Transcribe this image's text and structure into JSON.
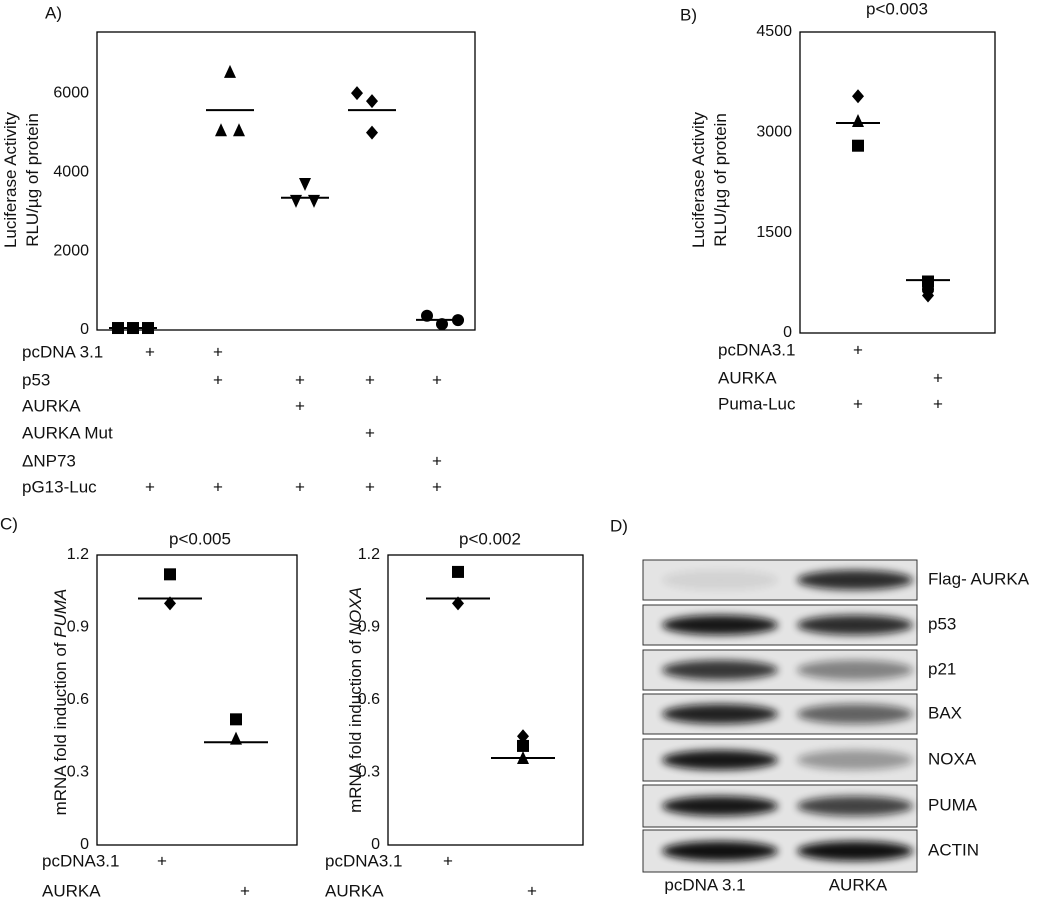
{
  "chart_data": [
    {
      "type": "strip",
      "panel": "A)",
      "ylabel": [
        "Luciferase Activity",
        "RLU/µg of protein"
      ],
      "ylim": [
        0,
        7550
      ],
      "yticks": [
        0,
        2000,
        4000,
        6000
      ],
      "groups": [
        {
          "marker": "square",
          "values": [
            50,
            50,
            50
          ],
          "mean": 50
        },
        {
          "marker": "triangle-up",
          "values": [
            6540,
            5060,
            5060
          ],
          "mean": 5570
        },
        {
          "marker": "triangle-down",
          "values": [
            3700,
            3270,
            3270
          ],
          "mean": 3350
        },
        {
          "marker": "diamond",
          "values": [
            6000,
            5800,
            5000
          ],
          "mean": 5570
        },
        {
          "marker": "circle",
          "values": [
            360,
            150,
            250
          ],
          "mean": 255
        }
      ],
      "conditions": [
        {
          "label": "pcDNA 3.1",
          "marks": [
            "+",
            "+",
            null,
            null,
            null
          ]
        },
        {
          "label": "p53",
          "marks": [
            null,
            "+",
            "+",
            "+",
            "+"
          ]
        },
        {
          "label": "AURKA",
          "marks": [
            null,
            null,
            "+",
            null,
            null
          ]
        },
        {
          "label": "AURKA  Mut",
          "marks": [
            null,
            null,
            null,
            "+",
            null
          ]
        },
        {
          "label": "ΔNP73",
          "marks": [
            null,
            null,
            null,
            null,
            "+"
          ]
        },
        {
          "label": "pG13-Luc",
          "marks": [
            "+",
            "+",
            "+",
            "+",
            "+"
          ]
        }
      ]
    },
    {
      "type": "strip",
      "panel": "B)",
      "title": "p<0.003",
      "ylabel": [
        "Luciferase Activity",
        "RLU/µg of protein"
      ],
      "ylim": [
        0,
        4500
      ],
      "yticks": [
        0,
        1500,
        3000,
        4500
      ],
      "groups": [
        {
          "marker": "mixed",
          "markers": [
            "diamond",
            "triangle-up",
            "square"
          ],
          "values": [
            3540,
            3170,
            2800
          ],
          "mean": 3140
        },
        {
          "marker": "mixed",
          "markers": [
            "square",
            "triangle-up",
            "circle",
            "diamond"
          ],
          "values": [
            770,
            700,
            650,
            560
          ],
          "mean": 790
        }
      ],
      "conditions": [
        {
          "label": "pcDNA3.1",
          "marks": [
            "+",
            null
          ]
        },
        {
          "label": "AURKA",
          "marks": [
            null,
            "+"
          ]
        },
        {
          "label": "Puma-Luc",
          "marks": [
            "+",
            "+"
          ]
        }
      ]
    },
    {
      "type": "strip",
      "panel": "C)",
      "title": "p<0.005",
      "ylabel": [
        "mRNA fold induction of "
      ],
      "ylabel_italic": "PUMA",
      "ylim": [
        0,
        1.2
      ],
      "yticks": [
        0,
        0.3,
        0.6,
        0.9,
        1.2
      ],
      "groups": [
        {
          "marker": "mixed",
          "markers": [
            "square",
            "diamond"
          ],
          "values": [
            1.12,
            1.0
          ],
          "mean": 1.02
        },
        {
          "marker": "mixed",
          "markers": [
            "square",
            "triangle-up"
          ],
          "values": [
            0.52,
            0.44
          ],
          "mean": 0.425
        }
      ],
      "conditions": [
        {
          "label": "pcDNA3.1",
          "marks": [
            "+",
            null
          ]
        },
        {
          "label": "AURKA",
          "marks": [
            null,
            "+"
          ]
        }
      ]
    },
    {
      "type": "strip",
      "title": "p<0.002",
      "ylabel": [
        "mRNA fold induction of "
      ],
      "ylabel_italic": "NOXA",
      "ylim": [
        0,
        1.2
      ],
      "yticks": [
        0,
        0.3,
        0.6,
        0.9,
        1.2
      ],
      "groups": [
        {
          "marker": "mixed",
          "markers": [
            "square",
            "diamond"
          ],
          "values": [
            1.13,
            1.0
          ],
          "mean": 1.02
        },
        {
          "marker": "mixed",
          "markers": [
            "diamond",
            "square",
            "triangle-up"
          ],
          "values": [
            0.45,
            0.41,
            0.36
          ],
          "mean": 0.36
        }
      ],
      "conditions": [
        {
          "label": "pcDNA3.1",
          "marks": [
            "+",
            null
          ]
        },
        {
          "label": "AURKA",
          "marks": [
            null,
            "+"
          ]
        }
      ]
    }
  ],
  "blot": {
    "panel": "D)",
    "rows": [
      "Flag- AURKA",
      "p53",
      "p21",
      "BAX",
      "NOXA",
      "PUMA",
      "ACTIN"
    ],
    "lanes": [
      "pcDNA 3.1",
      "AURKA"
    ]
  }
}
